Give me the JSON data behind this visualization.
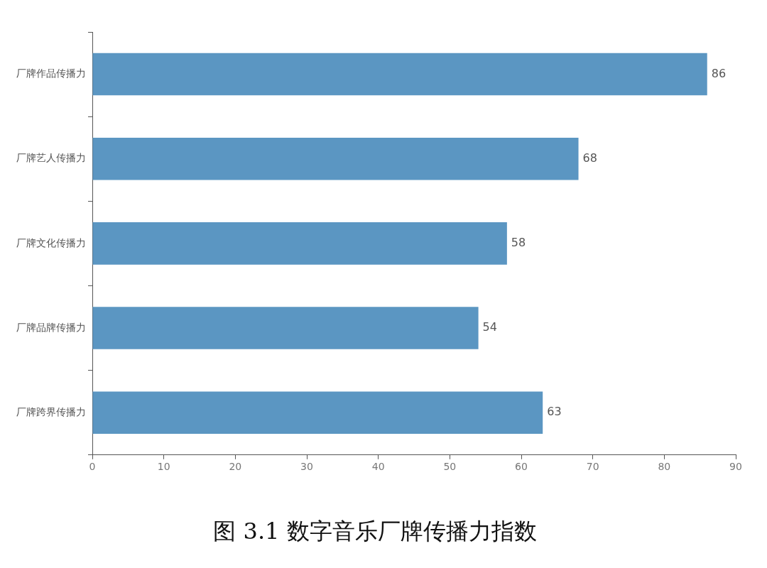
{
  "chart_data": {
    "type": "bar",
    "orientation": "horizontal",
    "title": "图 3.1 数字音乐厂牌传播力指数",
    "categories": [
      "厂牌作品传播力",
      "厂牌艺人传播力",
      "厂牌文化传播力",
      "厂牌品牌传播力",
      "厂牌跨界传播力"
    ],
    "values": [
      86,
      68,
      58,
      54,
      63
    ],
    "color": "#5b96c2",
    "xlim": [
      0,
      90
    ],
    "xticks": [
      0,
      10,
      20,
      30,
      40,
      50,
      60,
      70,
      80,
      90
    ],
    "data_labels": true,
    "legend": false
  }
}
